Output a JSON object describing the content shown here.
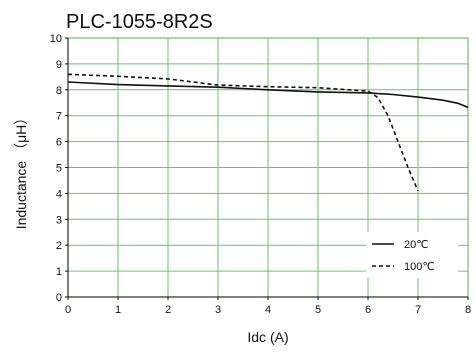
{
  "chart_data": {
    "type": "line",
    "title": "PLC-1055-8R2S",
    "xlabel": "Idc (A)",
    "ylabel": "Inductance （μH）",
    "xlim": [
      0,
      8
    ],
    "ylim": [
      0,
      10
    ],
    "xticks": [
      0,
      1,
      2,
      3,
      4,
      5,
      6,
      7,
      8
    ],
    "yticks": [
      0,
      1,
      2,
      3,
      4,
      5,
      6,
      7,
      8,
      9,
      10
    ],
    "grid": true,
    "legend_position": "bottom-right",
    "series": [
      {
        "name": "20℃",
        "style": "solid",
        "x": [
          0,
          1,
          2,
          3,
          4,
          5,
          6,
          6.5,
          7,
          7.5,
          7.8,
          8
        ],
        "y": [
          8.3,
          8.2,
          8.15,
          8.1,
          8.0,
          7.92,
          7.88,
          7.82,
          7.72,
          7.6,
          7.48,
          7.32
        ]
      },
      {
        "name": "100℃",
        "style": "dashed",
        "x": [
          0,
          1,
          2,
          3,
          4,
          5,
          6,
          6.2,
          6.4,
          6.6,
          6.8,
          7.0
        ],
        "y": [
          8.6,
          8.52,
          8.42,
          8.18,
          8.12,
          8.08,
          7.95,
          7.7,
          7.0,
          6.0,
          5.0,
          4.1
        ]
      }
    ],
    "colors": {
      "line": "#111111",
      "grid": "#6fc16f",
      "background": "#ffffff"
    }
  }
}
